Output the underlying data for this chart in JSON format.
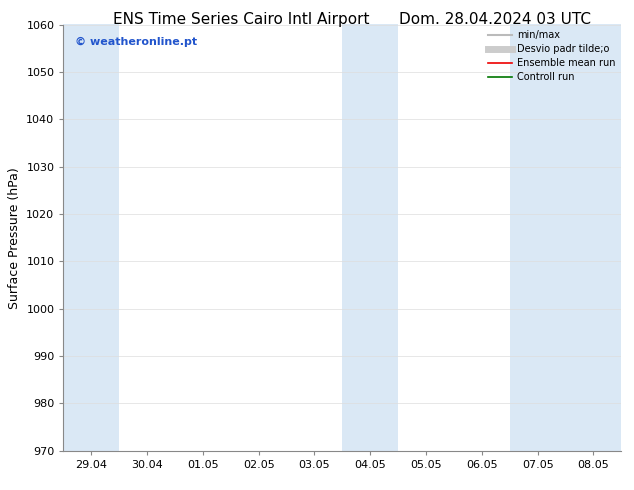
{
  "title_left": "ENS Time Series Cairo Intl Airport",
  "title_right": "Dom. 28.04.2024 03 UTC",
  "ylabel": "Surface Pressure (hPa)",
  "ylim": [
    970,
    1060
  ],
  "yticks": [
    970,
    980,
    990,
    1000,
    1010,
    1020,
    1030,
    1040,
    1050,
    1060
  ],
  "x_labels": [
    "29.04",
    "30.04",
    "01.05",
    "02.05",
    "03.05",
    "04.05",
    "05.05",
    "06.05",
    "07.05",
    "08.05"
  ],
  "x_positions": [
    0,
    1,
    2,
    3,
    4,
    5,
    6,
    7,
    8,
    9
  ],
  "xlim": [
    -0.5,
    9.5
  ],
  "shaded_bands": [
    {
      "xmin": -0.5,
      "xmax": 0.5
    },
    {
      "xmin": 4.5,
      "xmax": 5.5
    },
    {
      "xmin": 7.5,
      "xmax": 9.5
    }
  ],
  "shade_color": "#dae8f5",
  "background_color": "#ffffff",
  "watermark_text": "© weatheronline.pt",
  "watermark_color": "#2255cc",
  "legend_items": [
    {
      "label": "min/max",
      "color": "#bbbbbb",
      "lw": 1.5
    },
    {
      "label": "Desvio padr tilde;o",
      "color": "#cccccc",
      "lw": 5
    },
    {
      "label": "Ensemble mean run",
      "color": "#ee0000",
      "lw": 1.2
    },
    {
      "label": "Controll run",
      "color": "#007700",
      "lw": 1.2
    }
  ],
  "title_fontsize": 11,
  "tick_fontsize": 8,
  "ylabel_fontsize": 9,
  "legend_fontsize": 7,
  "watermark_fontsize": 8,
  "fig_width": 6.34,
  "fig_height": 4.9,
  "dpi": 100
}
